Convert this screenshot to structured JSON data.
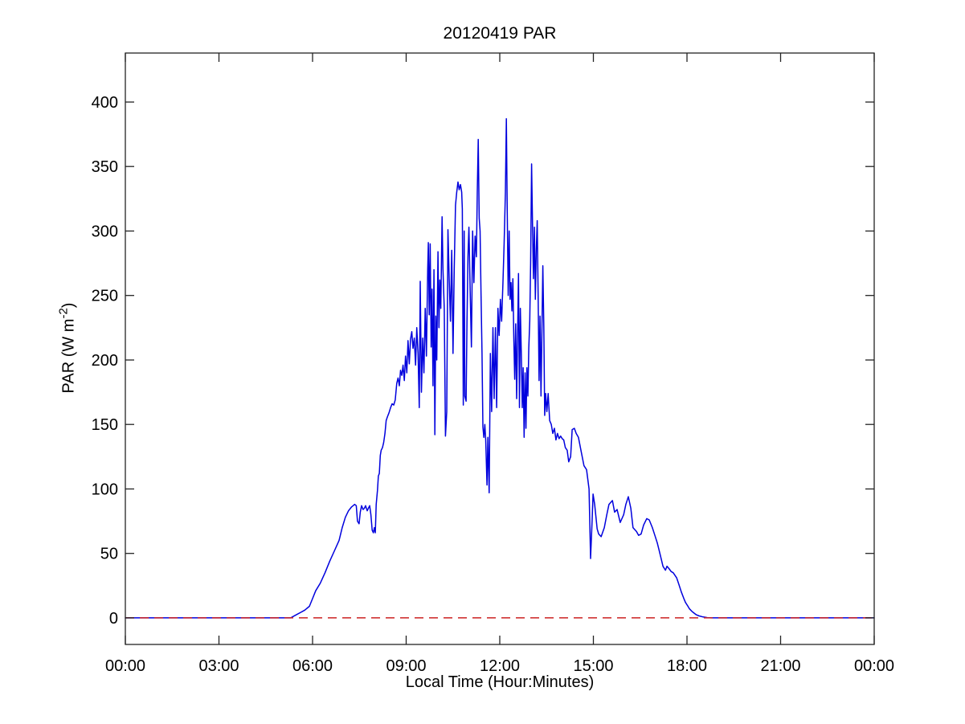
{
  "chart_data": {
    "type": "line",
    "title": "20120419 PAR",
    "xlabel": "Local Time (Hour:Minutes)",
    "ylabel_parts": {
      "base": "PAR (W m",
      "sup": "-2",
      "end": ")"
    },
    "xlim": [
      0,
      24
    ],
    "ylim": [
      -20.6,
      438
    ],
    "grid": false,
    "legend": "none",
    "x_ticks": {
      "values": [
        0,
        3,
        6,
        9,
        12,
        15,
        18,
        21,
        24
      ],
      "labels": [
        "00:00",
        "03:00",
        "06:00",
        "09:00",
        "12:00",
        "15:00",
        "18:00",
        "21:00",
        "00:00"
      ]
    },
    "y_ticks": {
      "values": [
        0,
        50,
        100,
        150,
        200,
        250,
        300,
        350,
        400
      ],
      "labels": [
        "0",
        "50",
        "100",
        "150",
        "200",
        "250",
        "300",
        "350",
        "400"
      ]
    },
    "axis_color": "#222222",
    "reference_line": {
      "y": 0,
      "color": "#cc2222",
      "style": "dashed"
    },
    "series": [
      {
        "name": "PAR",
        "color": "#0000dd",
        "x_unit": "hours",
        "points": [
          [
            0,
            0
          ],
          [
            5.3,
            0
          ],
          [
            5.45,
            2
          ],
          [
            5.6,
            4
          ],
          [
            5.75,
            6
          ],
          [
            5.9,
            9
          ],
          [
            6,
            15
          ],
          [
            6.1,
            21
          ],
          [
            6.25,
            27
          ],
          [
            6.4,
            35
          ],
          [
            6.55,
            44
          ],
          [
            6.7,
            52
          ],
          [
            6.85,
            60
          ],
          [
            6.95,
            70
          ],
          [
            7.05,
            78
          ],
          [
            7.15,
            83
          ],
          [
            7.25,
            86
          ],
          [
            7.35,
            88
          ],
          [
            7.4,
            87
          ],
          [
            7.44,
            75
          ],
          [
            7.49,
            73
          ],
          [
            7.53,
            82
          ],
          [
            7.57,
            87
          ],
          [
            7.62,
            84
          ],
          [
            7.66,
            85
          ],
          [
            7.7,
            87
          ],
          [
            7.75,
            83
          ],
          [
            7.79,
            85
          ],
          [
            7.83,
            87
          ],
          [
            7.87,
            80
          ],
          [
            7.91,
            68
          ],
          [
            7.95,
            66
          ],
          [
            7.98,
            70
          ],
          [
            8.01,
            66
          ],
          [
            8.04,
            88
          ],
          [
            8.08,
            99
          ],
          [
            8.11,
            110
          ],
          [
            8.14,
            112
          ],
          [
            8.17,
            126
          ],
          [
            8.2,
            130
          ],
          [
            8.24,
            132
          ],
          [
            8.28,
            136
          ],
          [
            8.32,
            143
          ],
          [
            8.36,
            153
          ],
          [
            8.4,
            156
          ],
          [
            8.45,
            159
          ],
          [
            8.5,
            163
          ],
          [
            8.55,
            166
          ],
          [
            8.6,
            165
          ],
          [
            8.65,
            169
          ],
          [
            8.7,
            182
          ],
          [
            8.74,
            186
          ],
          [
            8.78,
            180
          ],
          [
            8.82,
            192
          ],
          [
            8.86,
            188
          ],
          [
            8.9,
            196
          ],
          [
            8.94,
            184
          ],
          [
            8.98,
            203
          ],
          [
            9.02,
            190
          ],
          [
            9.06,
            215
          ],
          [
            9.1,
            197
          ],
          [
            9.14,
            216
          ],
          [
            9.18,
            222
          ],
          [
            9.22,
            209
          ],
          [
            9.26,
            217
          ],
          [
            9.3,
            196
          ],
          [
            9.34,
            225
          ],
          [
            9.38,
            205
          ],
          [
            9.42,
            163
          ],
          [
            9.45,
            261
          ],
          [
            9.49,
            175
          ],
          [
            9.53,
            217
          ],
          [
            9.57,
            190
          ],
          [
            9.61,
            240
          ],
          [
            9.65,
            203
          ],
          [
            9.69,
            270
          ],
          [
            9.71,
            291
          ],
          [
            9.74,
            235
          ],
          [
            9.77,
            290
          ],
          [
            9.8,
            210
          ],
          [
            9.83,
            255
          ],
          [
            9.86,
            180
          ],
          [
            9.89,
            270
          ],
          [
            9.92,
            142
          ],
          [
            9.95,
            234
          ],
          [
            9.98,
            200
          ],
          [
            10.02,
            284
          ],
          [
            10.05,
            225
          ],
          [
            10.08,
            262
          ],
          [
            10.11,
            240
          ],
          [
            10.15,
            311
          ],
          [
            10.18,
            270
          ],
          [
            10.22,
            240
          ],
          [
            10.26,
            141
          ],
          [
            10.3,
            160
          ],
          [
            10.34,
            301
          ],
          [
            10.38,
            262
          ],
          [
            10.42,
            230
          ],
          [
            10.46,
            285
          ],
          [
            10.5,
            205
          ],
          [
            10.54,
            270
          ],
          [
            10.58,
            320
          ],
          [
            10.62,
            330
          ],
          [
            10.66,
            338
          ],
          [
            10.7,
            332
          ],
          [
            10.74,
            336
          ],
          [
            10.78,
            330
          ],
          [
            10.8,
            317
          ],
          [
            10.83,
            165
          ],
          [
            10.86,
            300
          ],
          [
            10.88,
            172
          ],
          [
            10.92,
            168
          ],
          [
            10.95,
            230
          ],
          [
            10.98,
            280
          ],
          [
            11.01,
            303
          ],
          [
            11.05,
            255
          ],
          [
            11.09,
            210
          ],
          [
            11.13,
            300
          ],
          [
            11.17,
            260
          ],
          [
            11.21,
            296
          ],
          [
            11.25,
            280
          ],
          [
            11.28,
            330
          ],
          [
            11.31,
            371
          ],
          [
            11.34,
            310
          ],
          [
            11.37,
            300
          ],
          [
            11.4,
            250
          ],
          [
            11.43,
            205
          ],
          [
            11.46,
            148
          ],
          [
            11.49,
            140
          ],
          [
            11.52,
            150
          ],
          [
            11.55,
            138
          ],
          [
            11.59,
            103
          ],
          [
            11.62,
            140
          ],
          [
            11.66,
            97
          ],
          [
            11.7,
            205
          ],
          [
            11.74,
            160
          ],
          [
            11.78,
            225
          ],
          [
            11.82,
            170
          ],
          [
            11.86,
            225
          ],
          [
            11.9,
            163
          ],
          [
            11.94,
            240
          ],
          [
            11.98,
            219
          ],
          [
            12.02,
            247
          ],
          [
            12.06,
            230
          ],
          [
            12.1,
            259
          ],
          [
            12.14,
            290
          ],
          [
            12.18,
            330
          ],
          [
            12.21,
            387
          ],
          [
            12.24,
            315
          ],
          [
            12.27,
            250
          ],
          [
            12.3,
            300
          ],
          [
            12.33,
            247
          ],
          [
            12.36,
            260
          ],
          [
            12.39,
            238
          ],
          [
            12.42,
            263
          ],
          [
            12.45,
            216
          ],
          [
            12.48,
            185
          ],
          [
            12.51,
            228
          ],
          [
            12.54,
            170
          ],
          [
            12.57,
            216
          ],
          [
            12.6,
            267
          ],
          [
            12.63,
            163
          ],
          [
            12.66,
            240
          ],
          [
            12.69,
            205
          ],
          [
            12.72,
            163
          ],
          [
            12.75,
            194
          ],
          [
            12.78,
            140
          ],
          [
            12.81,
            190
          ],
          [
            12.84,
            147
          ],
          [
            12.87,
            194
          ],
          [
            12.9,
            172
          ],
          [
            12.93,
            209
          ],
          [
            12.96,
            230
          ],
          [
            12.99,
            275
          ],
          [
            13.02,
            352
          ],
          [
            13.05,
            303
          ],
          [
            13.08,
            263
          ],
          [
            13.11,
            303
          ],
          [
            13.14,
            247
          ],
          [
            13.17,
            284
          ],
          [
            13.2,
            308
          ],
          [
            13.23,
            247
          ],
          [
            13.26,
            184
          ],
          [
            13.29,
            234
          ],
          [
            13.32,
            172
          ],
          [
            13.35,
            220
          ],
          [
            13.38,
            273
          ],
          [
            13.41,
            226
          ],
          [
            13.44,
            157
          ],
          [
            13.47,
            174
          ],
          [
            13.51,
            160
          ],
          [
            13.55,
            174
          ],
          [
            13.6,
            153
          ],
          [
            13.65,
            150
          ],
          [
            13.7,
            143
          ],
          [
            13.75,
            147
          ],
          [
            13.8,
            138
          ],
          [
            13.85,
            143
          ],
          [
            13.9,
            139
          ],
          [
            13.95,
            141
          ],
          [
            14,
            139
          ],
          [
            14.05,
            138
          ],
          [
            14.1,
            132
          ],
          [
            14.16,
            130
          ],
          [
            14.21,
            121
          ],
          [
            14.27,
            125
          ],
          [
            14.32,
            146
          ],
          [
            14.39,
            147
          ],
          [
            14.45,
            143
          ],
          [
            14.52,
            140
          ],
          [
            14.6,
            130
          ],
          [
            14.7,
            118
          ],
          [
            14.78,
            115
          ],
          [
            14.86,
            100
          ],
          [
            14.91,
            46
          ],
          [
            14.96,
            75
          ],
          [
            14.99,
            96
          ],
          [
            15.04,
            88
          ],
          [
            15.12,
            69
          ],
          [
            15.17,
            65
          ],
          [
            15.25,
            63
          ],
          [
            15.35,
            70
          ],
          [
            15.43,
            80
          ],
          [
            15.5,
            88
          ],
          [
            15.61,
            91
          ],
          [
            15.68,
            82
          ],
          [
            15.76,
            84
          ],
          [
            15.86,
            74
          ],
          [
            15.97,
            80
          ],
          [
            16.04,
            88
          ],
          [
            16.12,
            94
          ],
          [
            16.2,
            85
          ],
          [
            16.27,
            70
          ],
          [
            16.38,
            67
          ],
          [
            16.45,
            64
          ],
          [
            16.53,
            65
          ],
          [
            16.61,
            72
          ],
          [
            16.71,
            77
          ],
          [
            16.79,
            76
          ],
          [
            16.89,
            70
          ],
          [
            16.97,
            64
          ],
          [
            17.05,
            58
          ],
          [
            17.1,
            53
          ],
          [
            17.18,
            45
          ],
          [
            17.23,
            40
          ],
          [
            17.31,
            37
          ],
          [
            17.36,
            40
          ],
          [
            17.43,
            38
          ],
          [
            17.49,
            36
          ],
          [
            17.56,
            35
          ],
          [
            17.67,
            31
          ],
          [
            17.74,
            26
          ],
          [
            17.82,
            20
          ],
          [
            17.9,
            15
          ],
          [
            17.95,
            12
          ],
          [
            18.03,
            9
          ],
          [
            18.08,
            7
          ],
          [
            18.16,
            5
          ],
          [
            18.21,
            4
          ],
          [
            18.29,
            2.5
          ],
          [
            18.39,
            1.5
          ],
          [
            18.52,
            0.7
          ],
          [
            18.65,
            0.2
          ],
          [
            18.8,
            0
          ],
          [
            24,
            0
          ]
        ]
      }
    ]
  }
}
